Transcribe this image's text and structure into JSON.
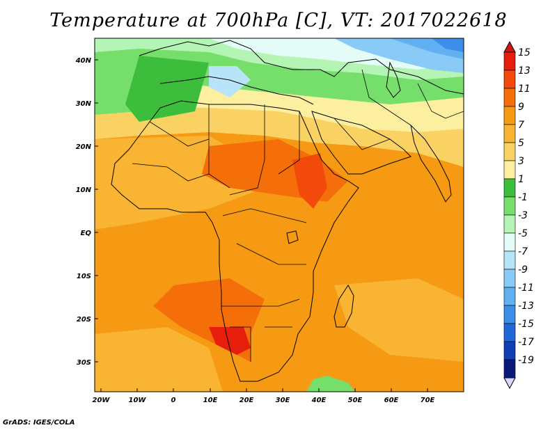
{
  "map": {
    "title": "Temperature at 700hPa [C], VT: 2017022618",
    "credit": "GrADS: IGES/COLA",
    "lat_labels": [
      "40N",
      "30N",
      "20N",
      "10N",
      "EQ",
      "10S",
      "20S",
      "30S"
    ],
    "lon_labels": [
      "20W",
      "10W",
      "0",
      "10E",
      "20E",
      "30E",
      "40E",
      "50E",
      "60E",
      "70E"
    ],
    "colorbar": {
      "labels": [
        "15",
        "13",
        "11",
        "9",
        "7",
        "5",
        "3",
        "1",
        "-1",
        "-3",
        "-5",
        "-7",
        "-9",
        "-11",
        "-13",
        "-15",
        "-17",
        "-19"
      ],
      "colors": [
        "#e81e0c",
        "#f24a0a",
        "#f46e0a",
        "#f69a14",
        "#f8b432",
        "#fad264",
        "#fcf0a0",
        "#3cbe3c",
        "#76de6a",
        "#b4f4b4",
        "#e4fcf8",
        "#b8e4fa",
        "#8acaf6",
        "#60b0f2",
        "#3c8ee8",
        "#2068d8",
        "#1040b4",
        "#0a1a78"
      ],
      "top_arrow_color": "#d01810",
      "bottom_arrow_color": "#d8d8fa"
    },
    "colors": {
      "background": "#f69a14",
      "coast": "#000000"
    }
  }
}
